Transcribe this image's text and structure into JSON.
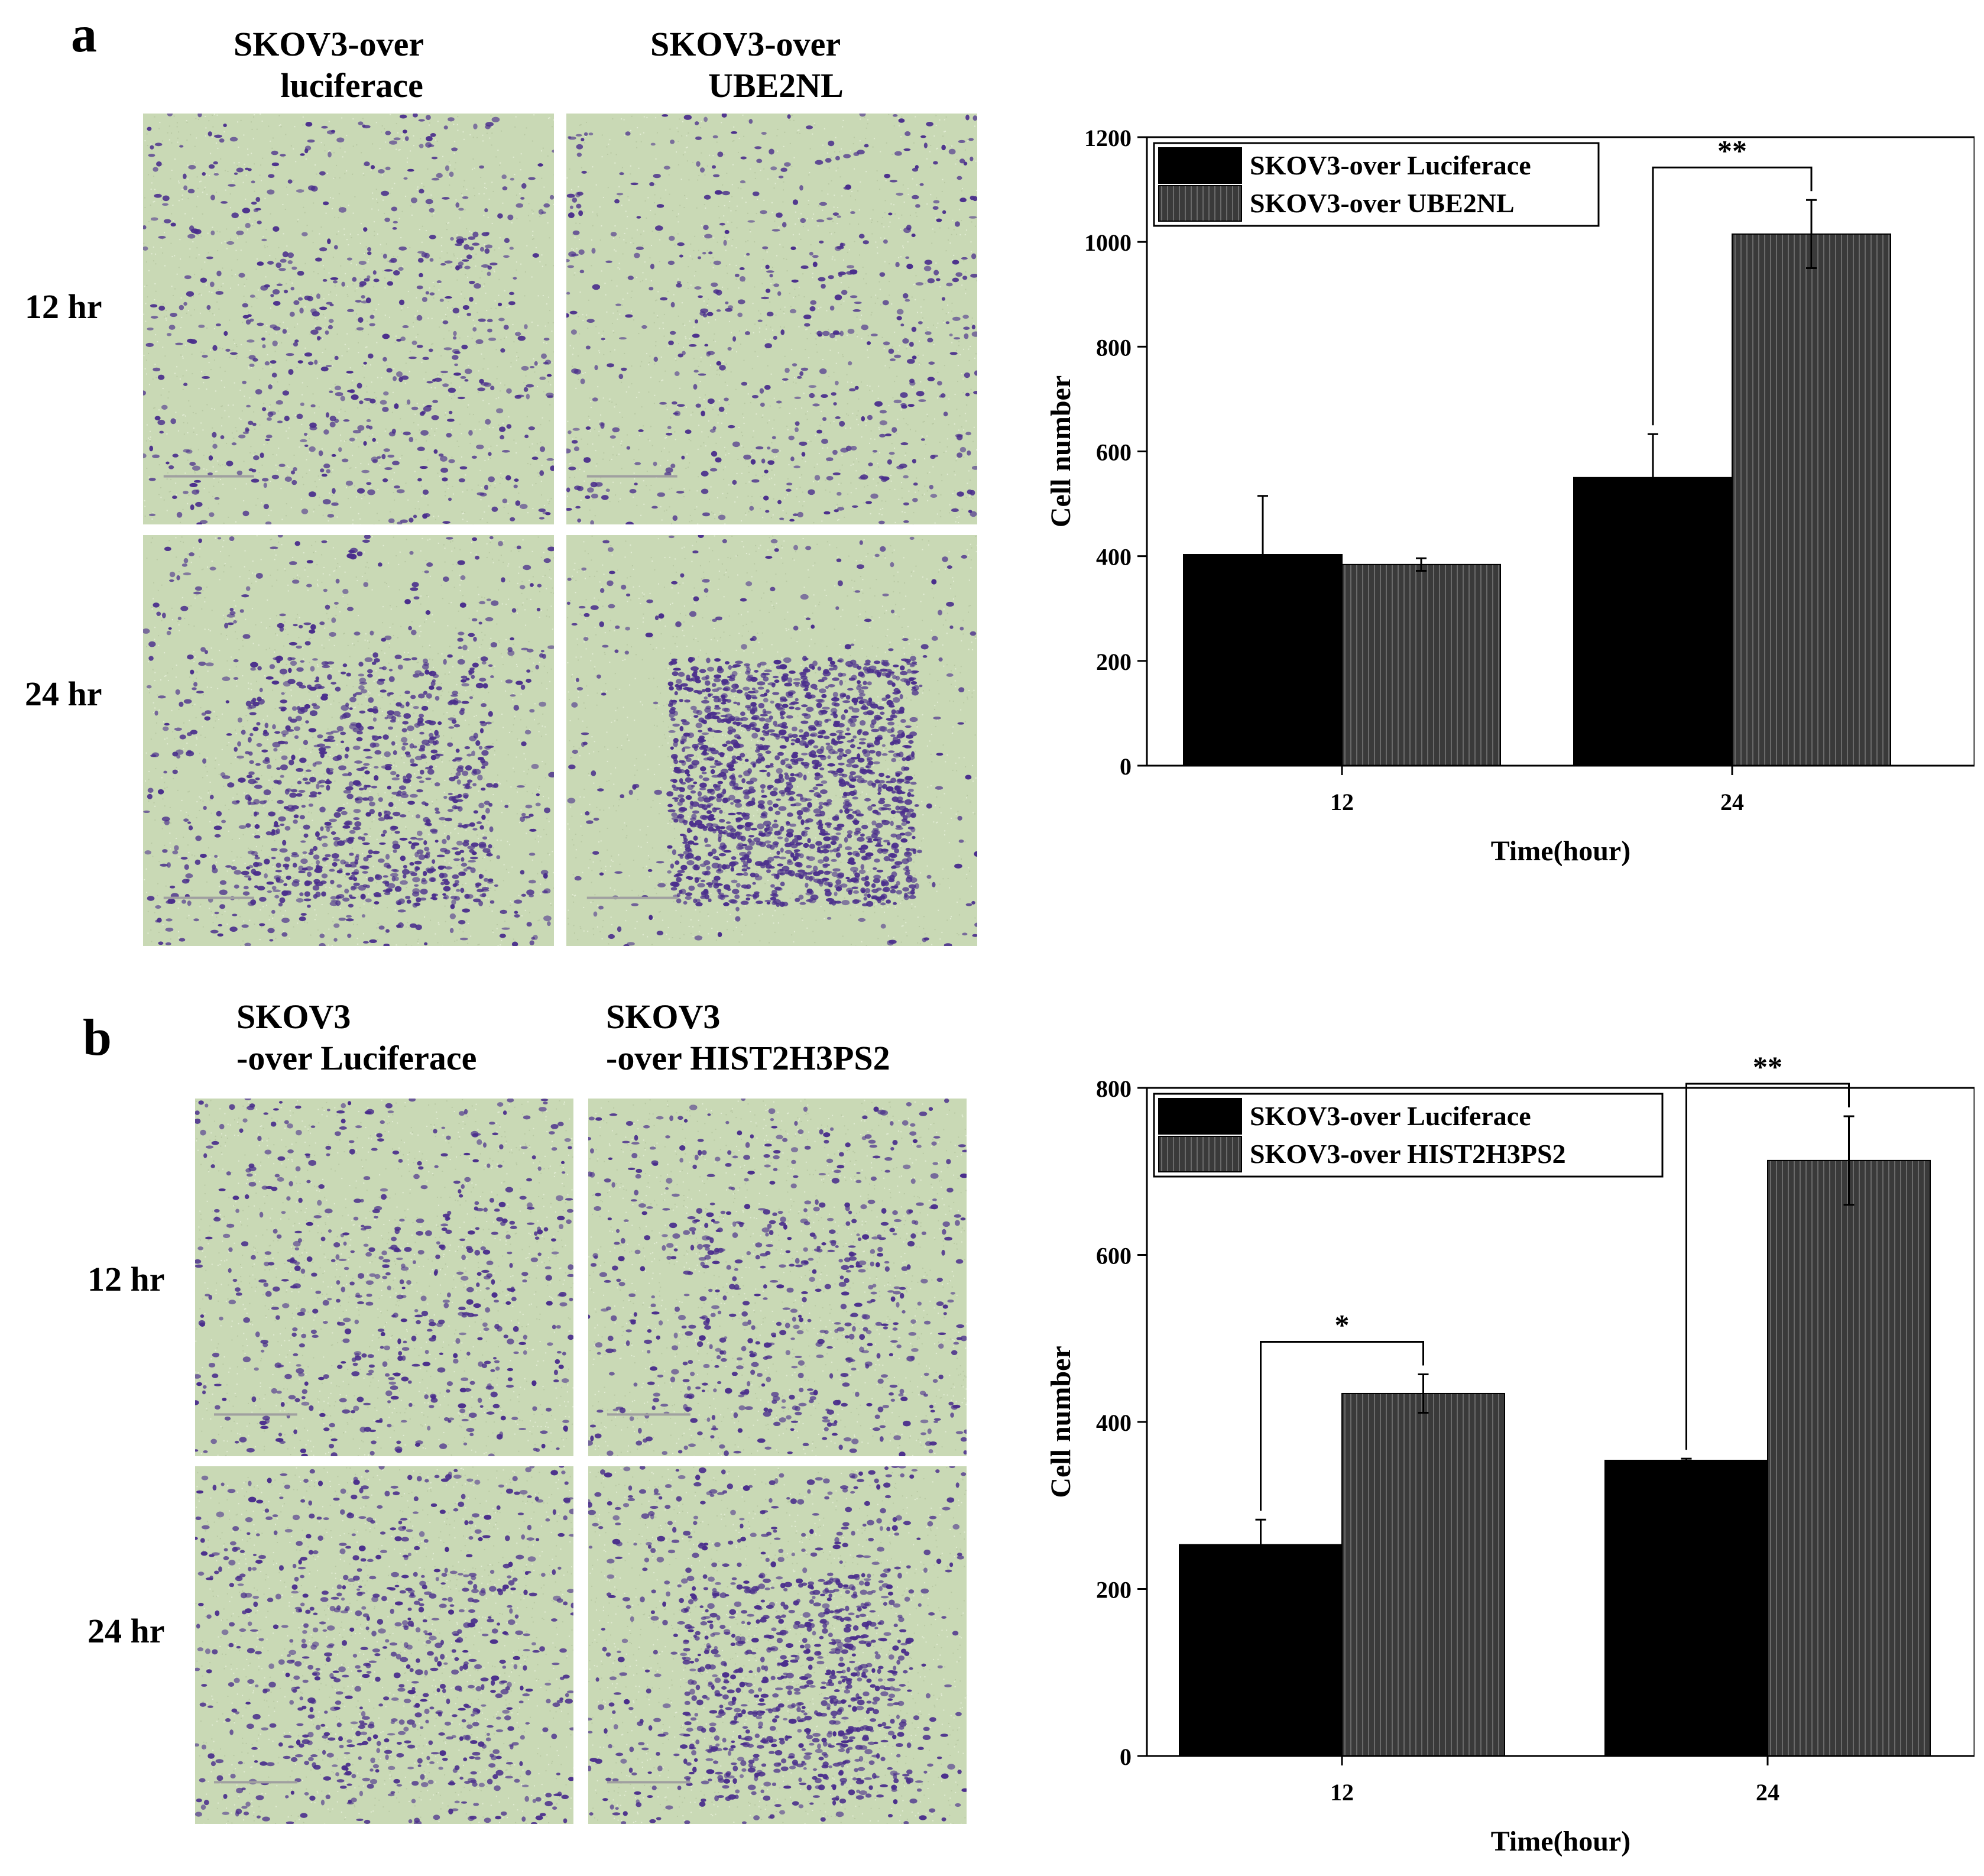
{
  "panel_a": {
    "letter": "a",
    "columns": [
      {
        "line1": "SKOV3-over",
        "line2": "luciferace"
      },
      {
        "line1": "SKOV3-over",
        "line2": "UBE2NL"
      }
    ],
    "rows": [
      "12 hr",
      "24 hr"
    ]
  },
  "panel_b": {
    "letter": "b",
    "columns": [
      {
        "line1": "SKOV3",
        "line2": "-over Luciferace"
      },
      {
        "line1": "SKOV3",
        "line2": "-over HIST2H3PS2"
      }
    ],
    "rows": [
      "12 hr",
      "24 hr"
    ]
  },
  "micrograph_densities": [
    [
      0.22,
      0.16
    ],
    [
      0.55,
      0.85
    ],
    [
      0.2,
      0.24
    ],
    [
      0.32,
      0.5
    ]
  ],
  "colors": {
    "stain": "#4a2e8c",
    "background_tissue": "#c9d9b5",
    "luciferase_bar": "#000000",
    "treatment_bar": "#3a3a3a"
  },
  "chart_data": [
    {
      "type": "bar",
      "categories": [
        "12",
        "24"
      ],
      "series": [
        {
          "name": "SKOV3-over Luciferace",
          "values": [
            403,
            550
          ],
          "errors": [
            112,
            83
          ]
        },
        {
          "name": "SKOV3-over UBE2NL",
          "values": [
            384,
            1015
          ],
          "errors": [
            12,
            65
          ]
        }
      ],
      "xlabel": "Time(hour)",
      "ylabel": "Cell number",
      "ylim": [
        0,
        1200
      ],
      "yticks": [
        0,
        200,
        400,
        600,
        800,
        1000,
        1200
      ],
      "legend_position": "top-left",
      "significance": [
        {
          "category": "24",
          "label": "**"
        }
      ]
    },
    {
      "type": "bar",
      "categories": [
        "12",
        "24"
      ],
      "series": [
        {
          "name": "SKOV3-over Luciferace",
          "values": [
            253,
            354
          ],
          "errors": [
            30,
            2
          ]
        },
        {
          "name": "SKOV3-over HIST2H3PS2",
          "values": [
            434,
            713
          ],
          "errors": [
            23,
            53
          ]
        }
      ],
      "xlabel": "Time(hour)",
      "ylabel": "Cell number",
      "ylim": [
        0,
        800
      ],
      "yticks": [
        0,
        200,
        400,
        600,
        800
      ],
      "legend_position": "top-left",
      "significance": [
        {
          "category": "12",
          "label": "*"
        },
        {
          "category": "24",
          "label": "**"
        }
      ]
    }
  ]
}
